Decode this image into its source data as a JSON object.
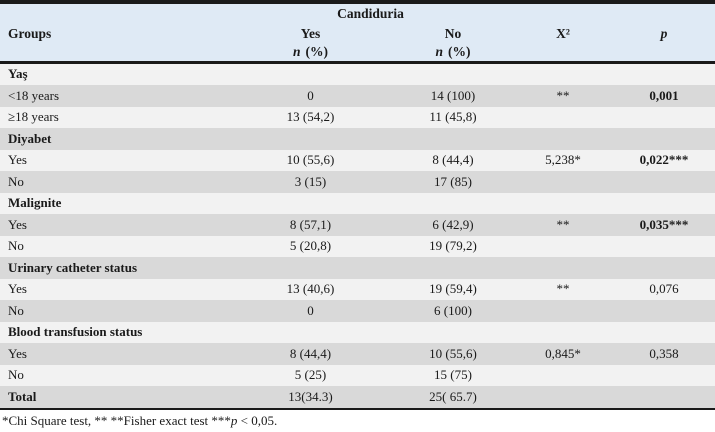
{
  "table": {
    "header": {
      "candiduria": "Candiduria",
      "groups": "Groups",
      "yes": "Yes",
      "no": "No",
      "chi_square": "X²",
      "p": "p",
      "n_label": "n",
      "pct_label": "(%)"
    },
    "rows": [
      {
        "label": "Yaş",
        "yes": "",
        "no": "",
        "x2": "",
        "p": ""
      },
      {
        "label": "<18 years",
        "yes": "0",
        "no": "14 (100)",
        "x2": "**",
        "p": "0,001"
      },
      {
        "label": "≥18 years",
        "yes": "13 (54,2)",
        "no": "11 (45,8)",
        "x2": "",
        "p": ""
      },
      {
        "label": "Diyabet",
        "yes": "",
        "no": "",
        "x2": "",
        "p": ""
      },
      {
        "label": "Yes",
        "yes": "10 (55,6)",
        "no": "8 (44,4)",
        "x2": "5,238*",
        "p": "0,022***"
      },
      {
        "label": "No",
        "yes": "3 (15)",
        "no": "17 (85)",
        "x2": "",
        "p": ""
      },
      {
        "label": "Malignite",
        "yes": "",
        "no": "",
        "x2": "",
        "p": ""
      },
      {
        "label": "Yes",
        "yes": "8 (57,1)",
        "no": "6 (42,9)",
        "x2": "**",
        "p": "0,035***"
      },
      {
        "label": "No",
        "yes": "5 (20,8)",
        "no": "19 (79,2)",
        "x2": "",
        "p": ""
      },
      {
        "label": "Urinary catheter status",
        "yes": "",
        "no": "",
        "x2": "",
        "p": ""
      },
      {
        "label": "Yes",
        "yes": "13 (40,6)",
        "no": "19 (59,4)",
        "x2": "**",
        "p": "0,076"
      },
      {
        "label": "No",
        "yes": "0",
        "no": "6 (100)",
        "x2": "",
        "p": ""
      },
      {
        "label": "Blood transfusion status",
        "yes": "",
        "no": "",
        "x2": "",
        "p": ""
      },
      {
        "label": "Yes",
        "yes": "8 (44,4)",
        "no": "10 (55,6)",
        "x2": "0,845*",
        "p": "0,358"
      },
      {
        "label": "No",
        "yes": "5 (25)",
        "no": "15 (75)",
        "x2": "",
        "p": ""
      },
      {
        "label": "Total",
        "yes": "13(34.3)",
        "no": "25( 65.7)",
        "x2": "",
        "p": ""
      }
    ],
    "footnote": {
      "prefix": "*Chi Square test, ** **Fisher exact test ***",
      "italic": "p",
      "suffix": " < 0,05."
    }
  },
  "colors": {
    "header_bg": "#dfeaf5",
    "row_light": "#f2f2f2",
    "row_dark": "#d9d9d9",
    "border": "#1a1a1a",
    "text": "#1a1a1a"
  }
}
